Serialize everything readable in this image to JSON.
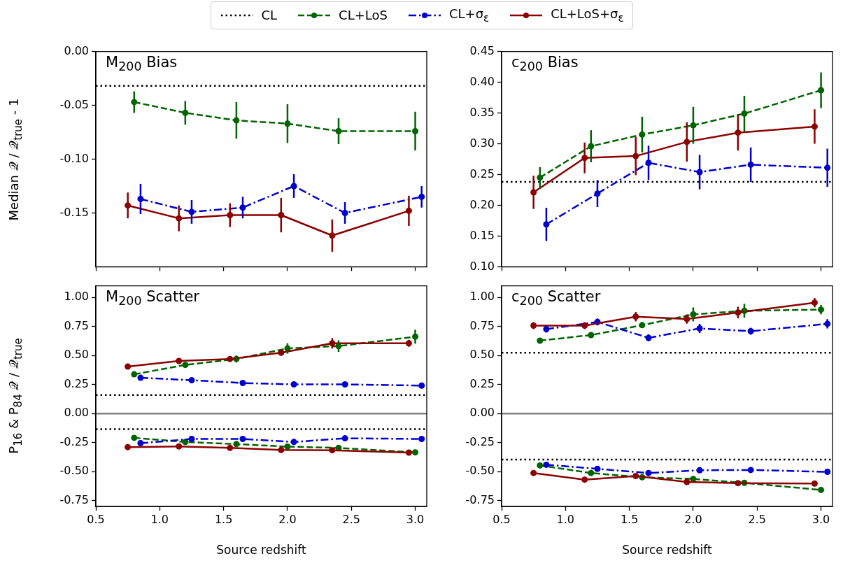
{
  "chart_data": [
    {
      "type": "line",
      "title": "M$_{200}$ Bias",
      "ylabel": "Median 𝒬 / 𝒬$_{true}$ - 1",
      "legend": "top",
      "tick_labels": "y",
      "xlim": [
        0.5,
        3.09
      ],
      "xticks": [
        0.5,
        1,
        1.5,
        2,
        2.5,
        3
      ],
      "ylim": [
        -0.2,
        0
      ],
      "yticks": [
        {
          "value": 0,
          "label": "0.00"
        },
        {
          "value": -0.05,
          "label": "-0.05"
        },
        {
          "value": -0.1,
          "label": "-0.10"
        },
        {
          "value": -0.15,
          "label": "-0.15"
        }
      ],
      "series": [
        {
          "name": "CL",
          "color": "#000000",
          "line_style": "dotted",
          "marker": "none",
          "x": [
            0.5,
            3.09
          ],
          "values": [
            -0.032,
            -0.032
          ]
        },
        {
          "name": "CL+LoS",
          "color": "#006400",
          "line_style": "dashed",
          "marker": "circle",
          "x": [
            0.8,
            1.2,
            1.6,
            2.0,
            2.4,
            3.0
          ],
          "values": [
            -0.047,
            -0.057,
            -0.064,
            -0.067,
            -0.074,
            -0.074
          ],
          "errors": [
            0.01,
            0.011,
            0.017,
            0.018,
            0.012,
            0.018
          ]
        },
        {
          "name": "CL+σ$_{ε}$",
          "color": "#0000cd",
          "line_style": "dashdot",
          "marker": "circle",
          "x": [
            0.85,
            1.25,
            1.65,
            2.05,
            2.45,
            3.05
          ],
          "values": [
            -0.137,
            -0.149,
            -0.145,
            -0.125,
            -0.15,
            -0.135
          ],
          "errors": [
            0.014,
            0.011,
            0.01,
            0.011,
            0.01,
            0.01
          ]
        },
        {
          "name": "CL+LoS+σ$_{ε}$",
          "color": "#8b0000",
          "line_style": "solid",
          "marker": "circle",
          "x": [
            0.75,
            1.15,
            1.55,
            1.95,
            2.35,
            2.95
          ],
          "values": [
            -0.143,
            -0.155,
            -0.152,
            -0.152,
            -0.171,
            -0.148
          ],
          "errors": [
            0.012,
            0.012,
            0.011,
            0.016,
            0.015,
            0.014
          ]
        }
      ]
    },
    {
      "type": "line",
      "title": "c$_{200}$ Bias",
      "tick_labels": "y",
      "xlim": [
        0.5,
        3.09
      ],
      "xticks": [
        0.5,
        1,
        1.5,
        2,
        2.5,
        3
      ],
      "ylim": [
        0.1,
        0.45
      ],
      "yticks": [
        {
          "value": 0.1,
          "label": "0.10"
        },
        {
          "value": 0.15,
          "label": "0.15"
        },
        {
          "value": 0.2,
          "label": "0.20"
        },
        {
          "value": 0.25,
          "label": "0.25"
        },
        {
          "value": 0.3,
          "label": "0.30"
        },
        {
          "value": 0.35,
          "label": "0.35"
        },
        {
          "value": 0.4,
          "label": "0.40"
        },
        {
          "value": 0.45,
          "label": "0.45"
        }
      ],
      "series": [
        {
          "color": "#000000",
          "line_style": "dotted",
          "marker": "none",
          "x": [
            0.5,
            3.09
          ],
          "values": [
            0.238,
            0.238
          ]
        },
        {
          "color": "#006400",
          "line_style": "dashed",
          "marker": "circle",
          "x": [
            0.8,
            1.2,
            1.6,
            2.0,
            2.4,
            3.0
          ],
          "values": [
            0.245,
            0.296,
            0.315,
            0.33,
            0.349,
            0.387
          ],
          "errors": [
            0.017,
            0.026,
            0.029,
            0.03,
            0.029,
            0.029
          ]
        },
        {
          "color": "#0000cd",
          "line_style": "dashdot",
          "marker": "circle",
          "x": [
            0.85,
            1.25,
            1.65,
            2.05,
            2.45,
            3.05
          ],
          "values": [
            0.169,
            0.219,
            0.269,
            0.254,
            0.266,
            0.261
          ],
          "errors": [
            0.027,
            0.022,
            0.028,
            0.028,
            0.028,
            0.031
          ]
        },
        {
          "color": "#8b0000",
          "line_style": "solid",
          "marker": "circle",
          "x": [
            0.75,
            1.15,
            1.55,
            1.95,
            2.35,
            2.95
          ],
          "values": [
            0.221,
            0.277,
            0.28,
            0.303,
            0.318,
            0.328
          ],
          "errors": [
            0.027,
            0.025,
            0.031,
            0.032,
            0.029,
            0.028
          ]
        }
      ]
    },
    {
      "type": "line",
      "title": "M$_{200}$ Scatter",
      "ylabel": "P$_{16}$ & P$_{84}$ 𝒬 / 𝒬$_{true}$",
      "xlabel": "Source redshift",
      "xlim": [
        0.5,
        3.09
      ],
      "xticks": [
        0.5,
        {
          "value": 1,
          "label": "1.0"
        },
        1.5,
        {
          "value": 2,
          "label": "2.0"
        },
        2.5,
        {
          "value": 3,
          "label": "3.0"
        }
      ],
      "ylim": [
        -0.8,
        1.1
      ],
      "yticks": [
        {
          "value": 1,
          "label": "1.00"
        },
        {
          "value": 0.75,
          "label": "0.75"
        },
        {
          "value": 0.5,
          "label": "0.50"
        },
        {
          "value": 0.25,
          "label": "0.25"
        },
        {
          "value": 0,
          "label": "0.00"
        },
        {
          "value": -0.25,
          "label": "-0.25"
        },
        {
          "value": -0.5,
          "label": "-0.50"
        },
        {
          "value": -0.75,
          "label": "-0.75"
        }
      ],
      "ref_lines": [
        {
          "axis": "y",
          "value": 0,
          "color": "#808080",
          "line_style": "solid"
        }
      ],
      "series": [
        {
          "color": "#000000",
          "line_style": "dotted",
          "marker": "none",
          "x": [
            0.5,
            3.09
          ],
          "values": [
            0.16,
            0.16
          ]
        },
        {
          "color": "#000000",
          "line_style": "dotted",
          "marker": "none",
          "x": [
            0.5,
            3.09
          ],
          "values": [
            -0.134,
            -0.134
          ]
        },
        {
          "color": "#006400",
          "line_style": "dashed",
          "marker": "circle",
          "x": [
            0.8,
            1.2,
            1.6,
            2.0,
            2.4,
            3.0
          ],
          "values": [
            0.338,
            0.419,
            0.47,
            0.561,
            0.581,
            0.662
          ],
          "errors": [
            0.02,
            0.02,
            0.03,
            0.045,
            0.05,
            0.06
          ]
        },
        {
          "color": "#0000cd",
          "line_style": "dashdot",
          "marker": "circle",
          "x": [
            0.85,
            1.25,
            1.65,
            2.05,
            2.45,
            3.05
          ],
          "values": [
            0.308,
            0.287,
            0.263,
            0.251,
            0.251,
            0.241
          ],
          "errors": [
            0.015,
            0.015,
            0.015,
            0.015,
            0.015,
            0.015
          ]
        },
        {
          "color": "#8b0000",
          "line_style": "solid",
          "marker": "circle",
          "x": [
            0.75,
            1.15,
            1.55,
            1.95,
            2.35,
            2.95
          ],
          "values": [
            0.405,
            0.453,
            0.47,
            0.524,
            0.605,
            0.605
          ],
          "errors": [
            0.02,
            0.02,
            0.02,
            0.02,
            0.045,
            0.03
          ]
        },
        {
          "color": "#006400",
          "line_style": "dashed",
          "marker": "circle",
          "x": [
            0.8,
            1.2,
            1.6,
            2.0,
            2.4,
            3.0
          ],
          "values": [
            -0.209,
            -0.245,
            -0.263,
            -0.285,
            -0.296,
            -0.334
          ]
        },
        {
          "color": "#0000cd",
          "line_style": "dashdot",
          "marker": "circle",
          "x": [
            0.85,
            1.25,
            1.65,
            2.05,
            2.45,
            3.05
          ],
          "values": [
            -0.255,
            -0.219,
            -0.219,
            -0.245,
            -0.213,
            -0.219
          ]
        },
        {
          "color": "#8b0000",
          "line_style": "solid",
          "marker": "circle",
          "x": [
            0.75,
            1.15,
            1.55,
            1.95,
            2.35,
            2.95
          ],
          "values": [
            -0.289,
            -0.283,
            -0.296,
            -0.314,
            -0.316,
            -0.336
          ]
        }
      ]
    },
    {
      "type": "line",
      "title": "c$_{200}$ Scatter",
      "xlabel": "Source redshift",
      "xlim": [
        0.5,
        3.09
      ],
      "xticks": [
        0.5,
        {
          "value": 1,
          "label": "1.0"
        },
        1.5,
        {
          "value": 2,
          "label": "2.0"
        },
        2.5,
        {
          "value": 3,
          "label": "3.0"
        }
      ],
      "ylim": [
        -0.8,
        1.1
      ],
      "yticks": [
        {
          "value": 1,
          "label": "1.00"
        },
        {
          "value": 0.75,
          "label": "0.75"
        },
        {
          "value": 0.5,
          "label": "0.50"
        },
        {
          "value": 0.25,
          "label": "0.25"
        },
        {
          "value": 0,
          "label": "0.00"
        },
        {
          "value": -0.25,
          "label": "-0.25"
        },
        {
          "value": -0.5,
          "label": "-0.50"
        },
        {
          "value": -0.75,
          "label": "-0.75"
        }
      ],
      "ref_lines": [
        {
          "axis": "y",
          "value": 0,
          "color": "#808080",
          "line_style": "solid"
        }
      ],
      "series": [
        {
          "color": "#000000",
          "line_style": "dotted",
          "marker": "none",
          "x": [
            0.5,
            3.09
          ],
          "values": [
            0.524,
            0.524
          ]
        },
        {
          "color": "#000000",
          "line_style": "dotted",
          "marker": "none",
          "x": [
            0.5,
            3.09
          ],
          "values": [
            -0.397,
            -0.397
          ]
        },
        {
          "color": "#006400",
          "line_style": "dashed",
          "marker": "circle",
          "x": [
            0.8,
            1.2,
            1.6,
            2.0,
            2.4,
            3.0
          ],
          "values": [
            0.628,
            0.676,
            0.761,
            0.854,
            0.885,
            0.895
          ],
          "errors": [
            0.02,
            0.02,
            0.02,
            0.06,
            0.06,
            0.04
          ]
        },
        {
          "color": "#0000cd",
          "line_style": "dashdot",
          "marker": "circle",
          "x": [
            0.85,
            1.25,
            1.65,
            2.05,
            2.45,
            3.05
          ],
          "values": [
            0.727,
            0.789,
            0.652,
            0.733,
            0.709,
            0.773
          ],
          "errors": [
            0.03,
            0.03,
            0.03,
            0.04,
            0.03,
            0.04
          ]
        },
        {
          "color": "#8b0000",
          "line_style": "solid",
          "marker": "circle",
          "x": [
            0.75,
            1.15,
            1.55,
            1.95,
            2.35,
            2.95
          ],
          "values": [
            0.757,
            0.757,
            0.834,
            0.814,
            0.87,
            0.955
          ],
          "errors": [
            0.03,
            0.03,
            0.04,
            0.04,
            0.05,
            0.04
          ]
        },
        {
          "color": "#006400",
          "line_style": "dashed",
          "marker": "circle",
          "x": [
            0.8,
            1.2,
            1.6,
            2.0,
            2.4,
            3.0
          ],
          "values": [
            -0.447,
            -0.512,
            -0.549,
            -0.563,
            -0.597,
            -0.658
          ]
        },
        {
          "color": "#0000cd",
          "line_style": "dashdot",
          "marker": "circle",
          "x": [
            0.85,
            1.25,
            1.65,
            2.05,
            2.45,
            3.05
          ],
          "values": [
            -0.441,
            -0.476,
            -0.512,
            -0.488,
            -0.486,
            -0.502
          ]
        },
        {
          "color": "#8b0000",
          "line_style": "solid",
          "marker": "circle",
          "x": [
            0.75,
            1.15,
            1.55,
            1.95,
            2.35,
            2.95
          ],
          "values": [
            -0.512,
            -0.569,
            -0.538,
            -0.589,
            -0.599,
            -0.603
          ]
        }
      ]
    }
  ]
}
